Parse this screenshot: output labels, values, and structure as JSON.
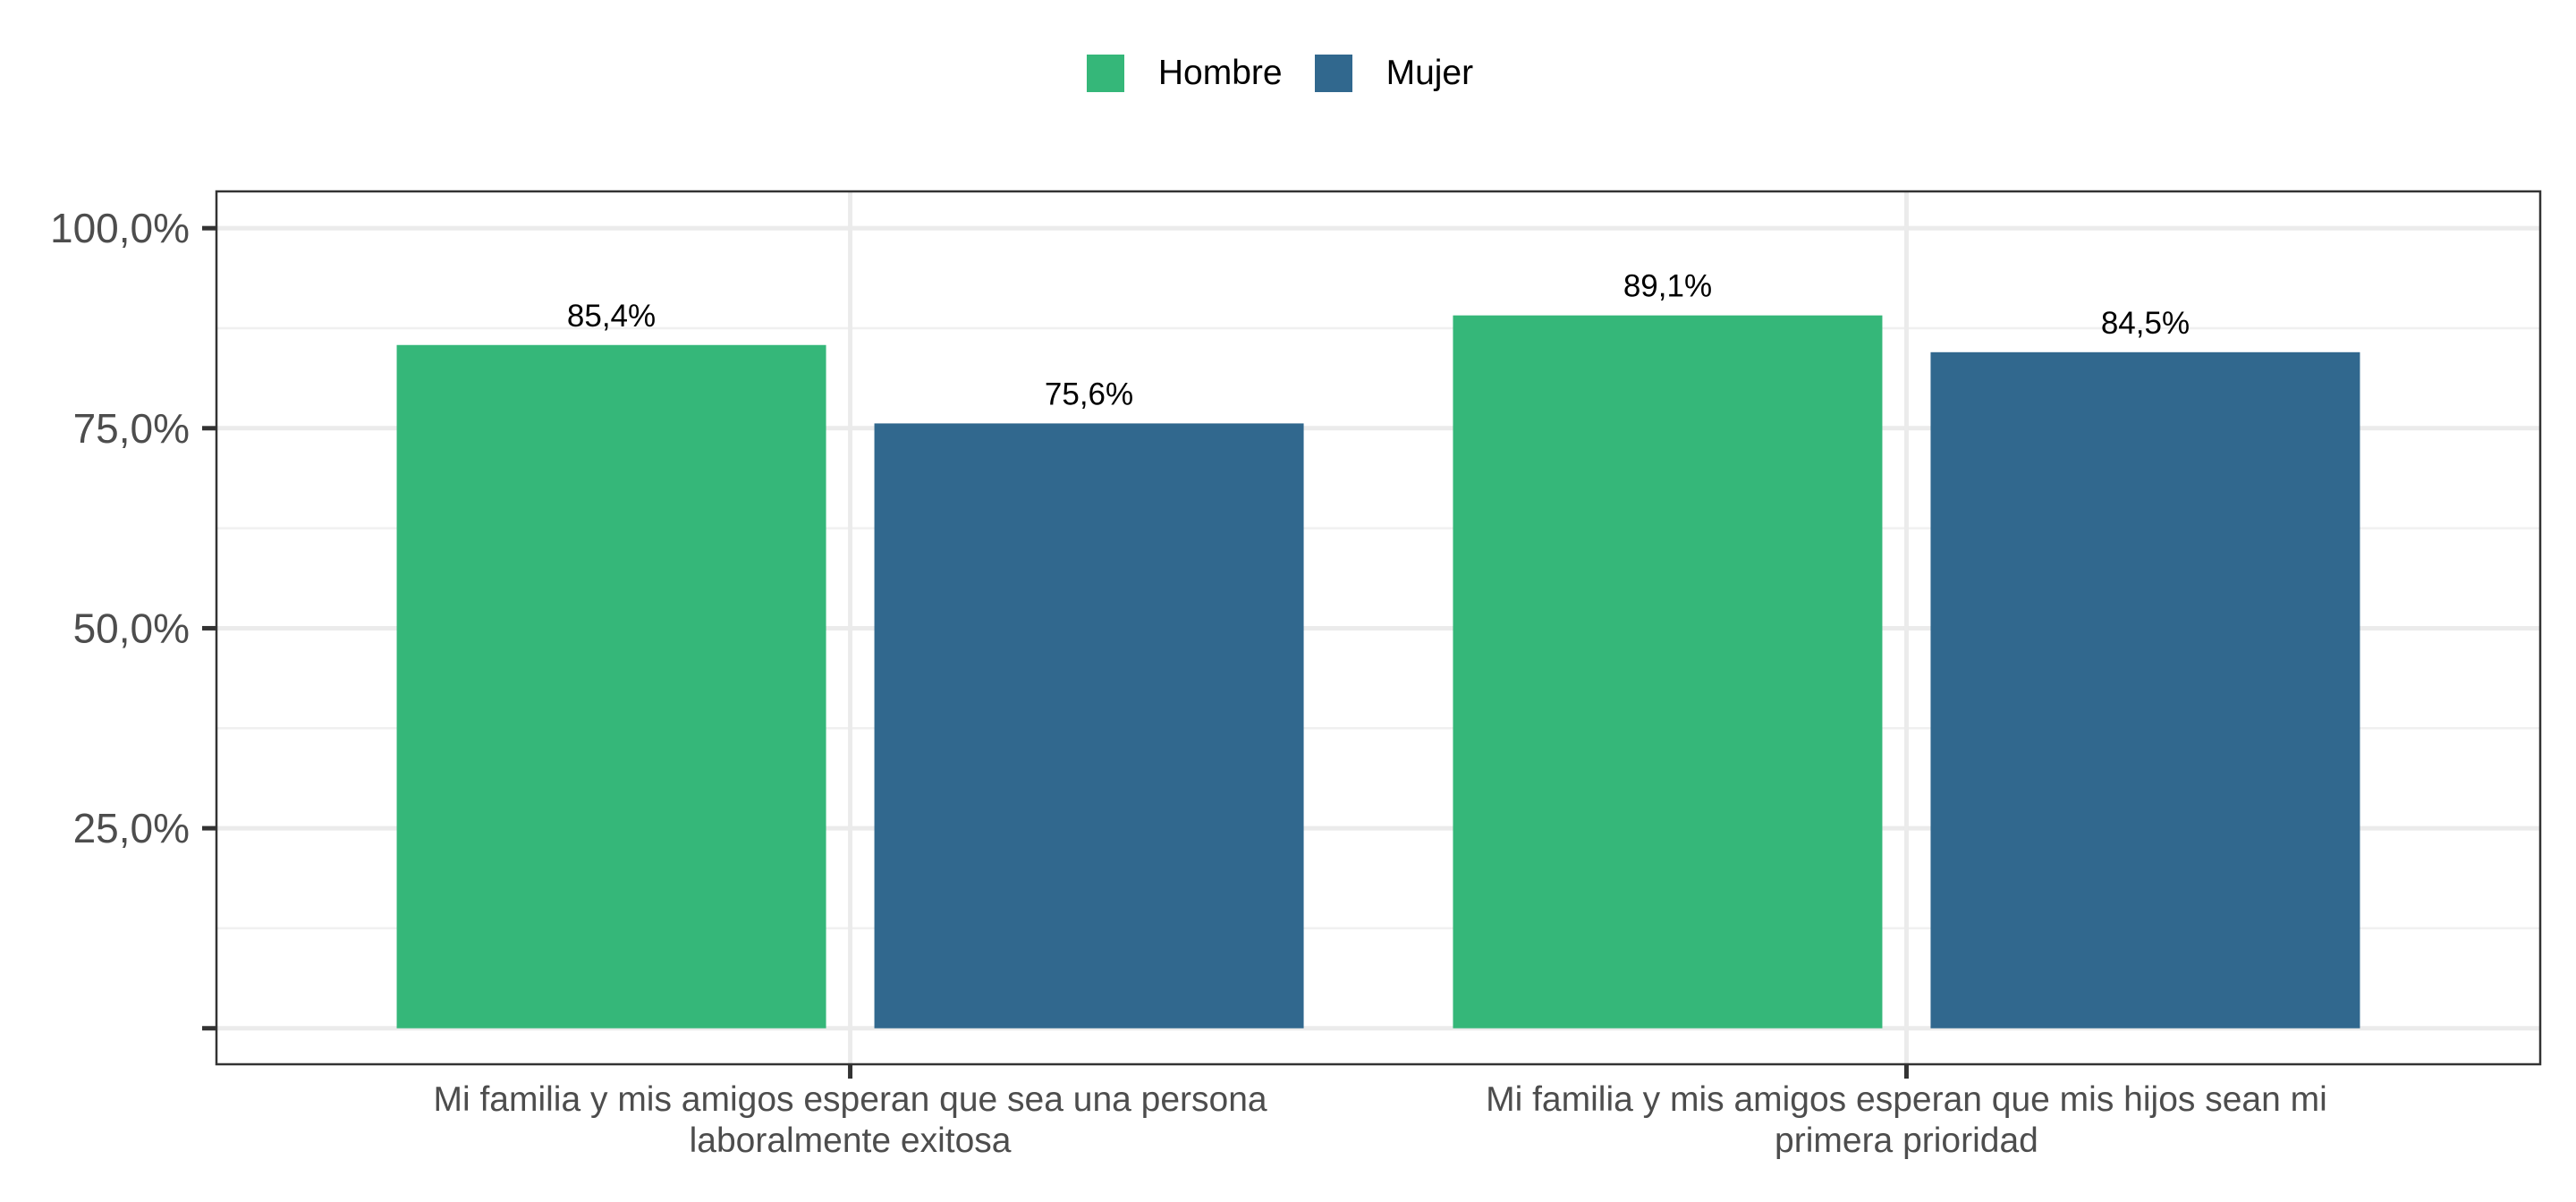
{
  "chart_data": {
    "type": "bar",
    "categories": [
      [
        "Mi familia y mis amigos esperan que sea una persona",
        "laboralmente exitosa"
      ],
      [
        "Mi familia y mis amigos esperan que mis hijos sean mi",
        "primera prioridad"
      ]
    ],
    "series": [
      {
        "name": "Hombre",
        "color": "#35b779",
        "values": [
          85.4,
          89.1
        ],
        "labels": [
          "85,4%",
          "89,1%"
        ]
      },
      {
        "name": "Mujer",
        "color": "#31688e",
        "values": [
          75.6,
          84.5
        ],
        "labels": [
          "75,6%",
          "84,5%"
        ]
      }
    ],
    "y_ticks": [
      {
        "value": 0,
        "label": ""
      },
      {
        "value": 25,
        "label": "25,0%"
      },
      {
        "value": 50,
        "label": "50,0%"
      },
      {
        "value": 75,
        "label": "75,0%"
      },
      {
        "value": 100,
        "label": "100,0%"
      }
    ],
    "ylim": [
      -4.5,
      104.6
    ],
    "grid": true,
    "legend_position": "top",
    "xlabel": "",
    "ylabel": "",
    "title": ""
  }
}
